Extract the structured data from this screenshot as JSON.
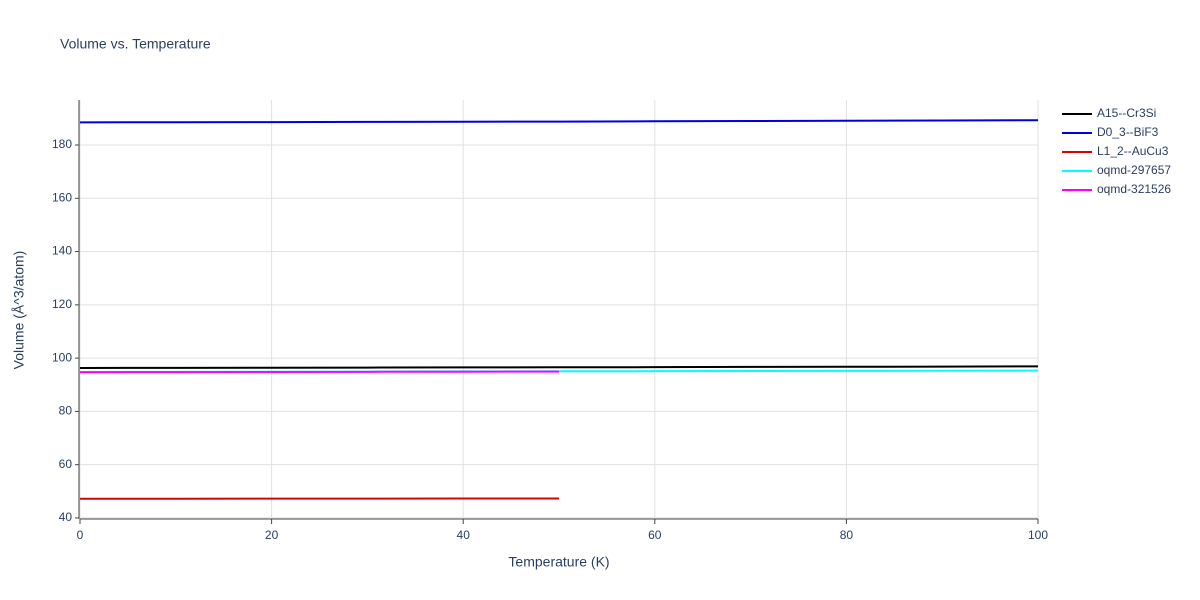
{
  "chart_data": {
    "type": "line",
    "title": "Volume vs. Temperature",
    "x_label": "Temperature (K)",
    "y_label": "Volume (Å^3/atom)",
    "x": [
      0,
      10,
      20,
      30,
      40,
      50,
      60,
      70,
      80,
      90,
      100
    ],
    "series": [
      {
        "name": "A15--Cr3Si",
        "color": "#000000",
        "values": [
          96.3,
          96.35,
          96.4,
          96.45,
          96.5,
          96.55,
          96.6,
          96.7,
          96.75,
          96.8,
          96.9
        ]
      },
      {
        "name": "D0_3--BiF3",
        "color": "#0000dd",
        "values": [
          188.5,
          188.55,
          188.6,
          188.7,
          188.75,
          188.8,
          188.9,
          189.0,
          189.1,
          189.2,
          189.3
        ]
      },
      {
        "name": "L1_2--AuCu3",
        "color": "#dd0000",
        "values": [
          47.2,
          47.22,
          47.24,
          47.26,
          47.28,
          47.3,
          null,
          null,
          null,
          null,
          null
        ]
      },
      {
        "name": "oqmd-297657",
        "color": "#00ffff",
        "values": [
          94.8,
          94.85,
          94.9,
          94.95,
          95.0,
          95.05,
          95.1,
          95.15,
          95.2,
          95.25,
          95.3
        ]
      },
      {
        "name": "oqmd-321526",
        "color": "#ff00ff",
        "values": [
          94.7,
          94.75,
          94.8,
          94.85,
          94.9,
          94.95,
          null,
          null,
          null,
          null,
          null
        ]
      }
    ],
    "xlim": [
      0,
      100
    ],
    "xticks": [
      0,
      20,
      40,
      60,
      80,
      100
    ],
    "ylim": [
      39.6,
      196.9
    ],
    "yticks": [
      40,
      60,
      80,
      100,
      120,
      140,
      160,
      180
    ],
    "grid": true,
    "legend": "right"
  }
}
